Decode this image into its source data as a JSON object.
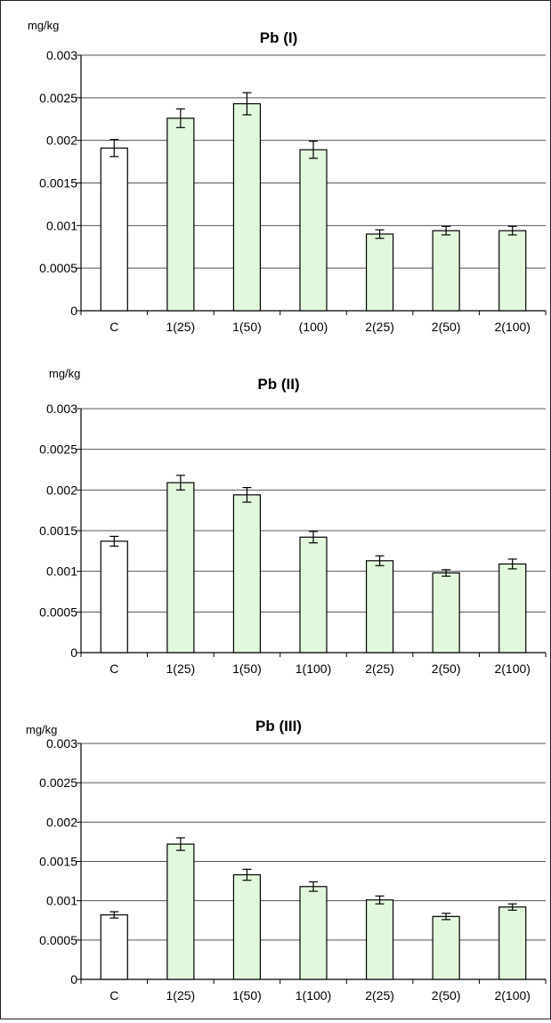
{
  "chart_data": [
    {
      "type": "bar",
      "title": "Pb (I)",
      "ylabel": "mg/kg",
      "xlabel": "",
      "ylim": [
        0,
        0.003
      ],
      "yticks": [
        "0",
        "0.0005",
        "0.001",
        "0.0015",
        "0.002",
        "0.0025",
        "0.003"
      ],
      "grid": true,
      "categories": [
        "C",
        "1(25)",
        "1(50)",
        "(100)",
        "2(25)",
        "2(50)",
        "2(100)"
      ],
      "values": [
        0.00191,
        0.00226,
        0.00243,
        0.00189,
        0.0009,
        0.00094,
        0.00094
      ],
      "errors": [
        0.0001,
        0.00011,
        0.00013,
        0.0001,
        5e-05,
        5e-05,
        5e-05
      ],
      "colors": [
        "#ffffff",
        "#e2f8dc",
        "#e2f8dc",
        "#e2f8dc",
        "#e2f8dc",
        "#e2f8dc",
        "#e2f8dc"
      ]
    },
    {
      "type": "bar",
      "title": "Pb (II)",
      "ylabel": "mg/kg",
      "xlabel": "",
      "ylim": [
        0,
        0.003
      ],
      "yticks": [
        "0",
        "0.0005",
        "0.001",
        "0.0015",
        "0.002",
        "0.0025",
        "0.003"
      ],
      "grid": true,
      "categories": [
        "C",
        "1(25)",
        "1(50)",
        "1(100)",
        "2(25)",
        "2(50)",
        "2(100)"
      ],
      "values": [
        0.00137,
        0.00209,
        0.00194,
        0.00142,
        0.00113,
        0.00098,
        0.00109
      ],
      "errors": [
        6e-05,
        9e-05,
        9e-05,
        7e-05,
        6e-05,
        4e-05,
        6e-05
      ],
      "colors": [
        "#ffffff",
        "#e2f8dc",
        "#e2f8dc",
        "#e2f8dc",
        "#e2f8dc",
        "#e2f8dc",
        "#e2f8dc"
      ]
    },
    {
      "type": "bar",
      "title": "Pb (III)",
      "ylabel": "mg/kg",
      "xlabel": "",
      "ylim": [
        0,
        0.003
      ],
      "yticks": [
        "0",
        "0.0005",
        "0.001",
        "0.0015",
        "0.002",
        "0.0025",
        "0.003"
      ],
      "grid": true,
      "categories": [
        "C",
        "1(25)",
        "1(50)",
        "1(100)",
        "2(25)",
        "2(50)",
        "2(100)"
      ],
      "values": [
        0.00082,
        0.00172,
        0.00133,
        0.00118,
        0.00101,
        0.0008,
        0.00092
      ],
      "errors": [
        4e-05,
        8e-05,
        7e-05,
        6e-05,
        5e-05,
        4e-05,
        4e-05
      ],
      "colors": [
        "#ffffff",
        "#e2f8dc",
        "#e2f8dc",
        "#e2f8dc",
        "#e2f8dc",
        "#e2f8dc",
        "#e2f8dc"
      ]
    }
  ]
}
